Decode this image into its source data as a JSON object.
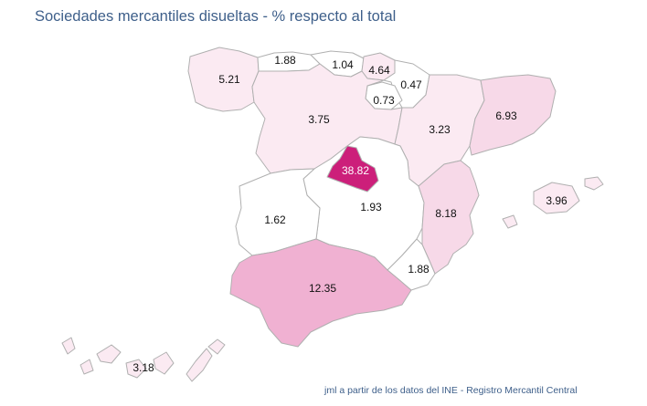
{
  "title": "Sociedades mercantiles disueltas - % respecto al total",
  "source": "jml a partir de los datos del INE - Registro Mercantil Central",
  "colors": {
    "none": "#ffffff",
    "very_low": "#fbeaf2",
    "low": "#f7d9e8",
    "mid": "#f0b1d2",
    "high": "#cc1f7a",
    "border": "#b0b0b0"
  },
  "regions": [
    {
      "name": "Galicia",
      "value": "5.21"
    },
    {
      "name": "Asturias",
      "value": "1.88"
    },
    {
      "name": "Cantabria",
      "value": "1.04"
    },
    {
      "name": "País Vasco",
      "value": "4.64"
    },
    {
      "name": "Navarra",
      "value": "0.47"
    },
    {
      "name": "La Rioja",
      "value": "0.73"
    },
    {
      "name": "Castilla y León",
      "value": "3.75"
    },
    {
      "name": "Aragón",
      "value": "3.23"
    },
    {
      "name": "Cataluña",
      "value": "6.93"
    },
    {
      "name": "Madrid",
      "value": "38.82"
    },
    {
      "name": "Castilla-La Mancha",
      "value": "1.93"
    },
    {
      "name": "Extremadura",
      "value": "1.62"
    },
    {
      "name": "Comunidad Valenciana",
      "value": "8.18"
    },
    {
      "name": "Islas Baleares",
      "value": "3.96"
    },
    {
      "name": "Región de Murcia",
      "value": "1.88"
    },
    {
      "name": "Andalucía",
      "value": "12.35"
    },
    {
      "name": "Canarias",
      "value": "3.18"
    }
  ]
}
